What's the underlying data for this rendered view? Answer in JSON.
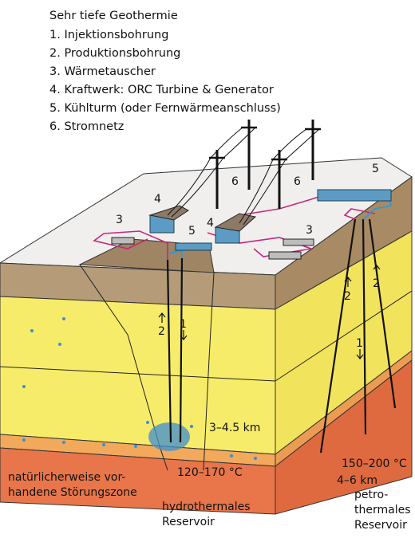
{
  "legend": {
    "title": "Sehr tiefe Geothermie",
    "items": [
      "1. Injektionsbohrung",
      "2. Produktionsbohrung",
      "3. Wärmetauscher",
      "4. Kraftwerk: ORC Turbine & Generator",
      "5. Kühlturm (oder Fernwärmeanschluss)",
      "6. Stromnetz"
    ]
  },
  "labels": {
    "grid_left": "6",
    "grid_right": "6",
    "tower_left": "5",
    "tower_right": "5",
    "plant_left": "4",
    "plant_right": "4",
    "exchanger_left": "3",
    "exchanger_right": "3",
    "well_left_production": "2",
    "well_left_injection": "1",
    "well_right_production_a": "2",
    "well_right_production_b": "2",
    "well_right_injection": "1",
    "depth_hydro": "3–4.5 km",
    "temp_hydro": "120–170 °C",
    "fault_zone": [
      "natürlicherweise vor-",
      "handene Störungszone"
    ],
    "reservoir_hydro": [
      "hydrothermales",
      "Reservoir"
    ],
    "temp_petro": "150–200 °C",
    "depth_petro": "4–6 km",
    "reservoir_petro": [
      "petro-",
      "thermales",
      "Reservoir"
    ]
  }
}
